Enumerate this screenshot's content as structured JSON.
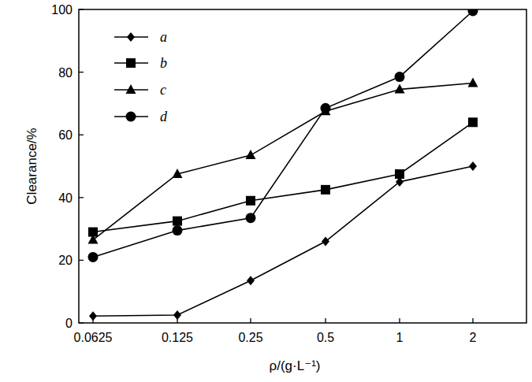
{
  "chart_data": {
    "type": "line",
    "x_label": "ρ/(g·L⁻¹)",
    "y_label": "Clearance/%",
    "categories": [
      "0.0625",
      "0.125",
      "0.25",
      "0.5",
      "1",
      "2"
    ],
    "series": [
      {
        "name": "a",
        "color": "#000000",
        "marker": "diamond",
        "values": [
          2.2,
          2.5,
          13.5,
          26,
          45,
          50
        ]
      },
      {
        "name": "b",
        "color": "#000000",
        "marker": "square",
        "values": [
          29,
          32.5,
          39,
          42.5,
          47.5,
          64
        ]
      },
      {
        "name": "c",
        "color": "#000000",
        "marker": "triangle",
        "values": [
          26.5,
          47.5,
          53.5,
          67.5,
          74.5,
          76.5
        ]
      },
      {
        "name": "d",
        "color": "#000000",
        "marker": "circle",
        "values": [
          21,
          29.5,
          33.5,
          68.5,
          78.5,
          99.5
        ]
      }
    ],
    "ylim": [
      0,
      100
    ],
    "yticks": [
      0,
      20,
      40,
      60,
      80,
      100
    ],
    "grid": false,
    "legend": "upper left"
  }
}
